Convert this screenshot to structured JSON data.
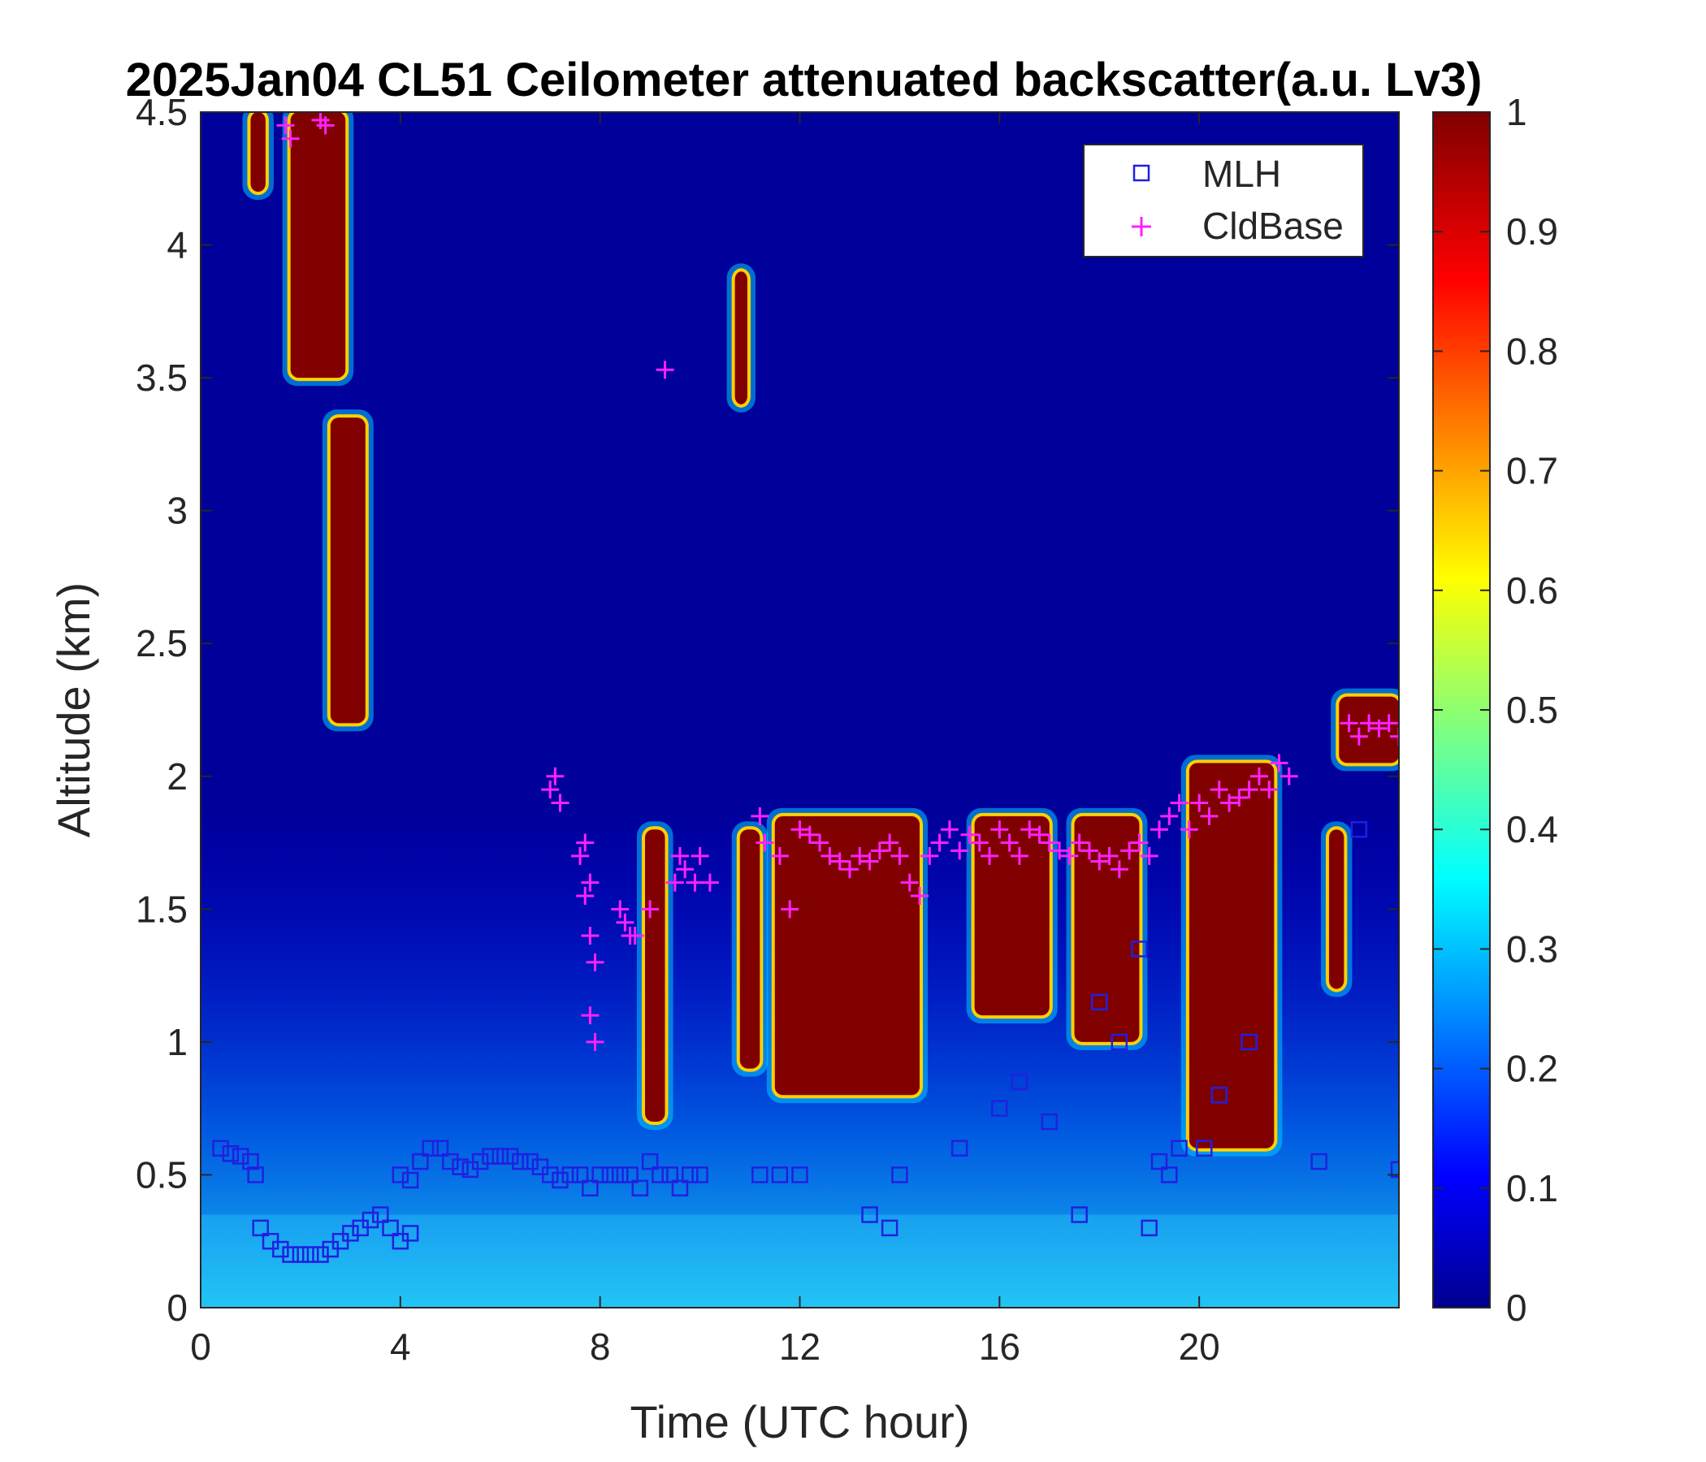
{
  "chart_data": {
    "type": "heatmap",
    "title": "2025Jan04 CL51 Ceilometer attenuated backscatter(a.u. Lv3)",
    "xlabel": "Time (UTC hour)",
    "ylabel": "Altitude (km)",
    "xlim": [
      0,
      24
    ],
    "ylim": [
      0,
      4.5
    ],
    "xticks": [
      0,
      4,
      8,
      12,
      16,
      20
    ],
    "yticks": [
      0,
      0.5,
      1,
      1.5,
      2,
      2.5,
      3,
      3.5,
      4,
      4.5
    ],
    "colorbar": {
      "min": 0,
      "max": 1,
      "ticks": [
        0,
        0.1,
        0.2,
        0.3,
        0.4,
        0.5,
        0.6,
        0.7,
        0.8,
        0.9,
        1
      ],
      "colormap": "jet"
    },
    "legend": {
      "position": "top-right",
      "entries": [
        "MLH",
        "CldBase"
      ]
    },
    "colors": {
      "mlh": "#2020e0",
      "cldbase": "#ff20ff"
    },
    "high_backscatter_regions": [
      {
        "t0": 1.8,
        "t1": 2.9,
        "z0": 3.5,
        "z1": 4.5
      },
      {
        "t0": 2.6,
        "t1": 3.3,
        "z0": 2.2,
        "z1": 3.35
      },
      {
        "t0": 1.0,
        "t1": 1.3,
        "z0": 4.2,
        "z1": 4.5
      },
      {
        "t0": 10.7,
        "t1": 10.95,
        "z0": 3.4,
        "z1": 3.9
      },
      {
        "t0": 8.9,
        "t1": 9.3,
        "z0": 0.7,
        "z1": 1.8
      },
      {
        "t0": 10.8,
        "t1": 11.2,
        "z0": 0.9,
        "z1": 1.8
      },
      {
        "t0": 11.5,
        "t1": 14.4,
        "z0": 0.8,
        "z1": 1.85
      },
      {
        "t0": 15.5,
        "t1": 17.0,
        "z0": 1.1,
        "z1": 1.85
      },
      {
        "t0": 17.5,
        "t1": 18.8,
        "z0": 1.0,
        "z1": 1.85
      },
      {
        "t0": 19.8,
        "t1": 21.5,
        "z0": 0.6,
        "z1": 2.05
      },
      {
        "t0": 22.6,
        "t1": 22.9,
        "z0": 1.2,
        "z1": 1.8
      },
      {
        "t0": 22.8,
        "t1": 24.0,
        "z0": 2.05,
        "z1": 2.3
      }
    ],
    "series": [
      {
        "name": "MLH",
        "marker": "square",
        "x": [
          0.4,
          0.6,
          0.8,
          1.0,
          1.1,
          1.2,
          1.4,
          1.6,
          1.8,
          2.0,
          2.2,
          2.4,
          2.6,
          2.8,
          3.0,
          3.2,
          3.4,
          3.6,
          3.8,
          4.0,
          4.2,
          4.0,
          4.2,
          4.4,
          4.6,
          4.8,
          5.0,
          5.2,
          5.4,
          5.6,
          5.8,
          6.0,
          6.2,
          6.4,
          6.6,
          6.8,
          7.0,
          7.2,
          7.4,
          7.6,
          7.8,
          8.0,
          8.2,
          8.4,
          8.6,
          8.8,
          9.0,
          9.2,
          9.4,
          9.6,
          9.8,
          10.0,
          11.2,
          11.6,
          12.0,
          13.4,
          13.8,
          14.0,
          15.2,
          16.0,
          16.4,
          17.0,
          17.6,
          18.0,
          18.4,
          18.8,
          19.0,
          19.2,
          19.4,
          19.6,
          20.1,
          20.4,
          21.0,
          22.4,
          23.2,
          24.0
        ],
        "y": [
          0.6,
          0.58,
          0.57,
          0.55,
          0.5,
          0.3,
          0.25,
          0.22,
          0.2,
          0.2,
          0.2,
          0.2,
          0.22,
          0.25,
          0.28,
          0.3,
          0.33,
          0.35,
          0.3,
          0.25,
          0.28,
          0.5,
          0.48,
          0.55,
          0.6,
          0.6,
          0.55,
          0.53,
          0.52,
          0.55,
          0.57,
          0.57,
          0.57,
          0.55,
          0.55,
          0.53,
          0.5,
          0.48,
          0.5,
          0.5,
          0.45,
          0.5,
          0.5,
          0.5,
          0.5,
          0.45,
          0.55,
          0.5,
          0.5,
          0.45,
          0.5,
          0.5,
          0.5,
          0.5,
          0.5,
          0.35,
          0.3,
          0.5,
          0.6,
          0.75,
          0.85,
          0.7,
          0.35,
          1.15,
          1.0,
          1.35,
          0.3,
          0.55,
          0.5,
          0.6,
          0.6,
          0.8,
          1.0,
          0.55,
          1.8,
          0.52
        ]
      },
      {
        "name": "CldBase",
        "marker": "plus",
        "x": [
          1.7,
          1.8,
          2.4,
          2.5,
          7.0,
          7.1,
          7.2,
          7.7,
          7.8,
          7.8,
          7.9,
          7.8,
          7.9,
          7.6,
          7.7,
          8.4,
          8.5,
          8.6,
          8.7,
          9.0,
          9.5,
          9.6,
          9.7,
          9.9,
          10.0,
          10.2,
          9.3,
          11.2,
          11.3,
          11.6,
          11.8,
          12.0,
          12.2,
          12.4,
          12.6,
          12.8,
          13.0,
          13.2,
          13.4,
          13.6,
          13.8,
          14.0,
          14.2,
          14.4,
          14.6,
          14.8,
          15.0,
          15.2,
          15.4,
          15.6,
          15.8,
          16.0,
          16.2,
          16.4,
          16.6,
          16.8,
          17.0,
          17.2,
          17.4,
          17.6,
          17.8,
          18.0,
          18.2,
          18.4,
          18.6,
          18.8,
          19.0,
          19.2,
          19.4,
          19.6,
          19.8,
          20.0,
          20.2,
          20.4,
          20.6,
          20.8,
          21.0,
          21.2,
          21.4,
          21.6,
          21.8,
          23.0,
          23.2,
          23.4,
          23.6,
          23.8,
          24.0
        ],
        "y": [
          4.45,
          4.4,
          4.47,
          4.45,
          1.95,
          2.0,
          1.9,
          1.75,
          1.6,
          1.4,
          1.3,
          1.1,
          1.0,
          1.7,
          1.55,
          1.5,
          1.45,
          1.4,
          1.4,
          1.5,
          1.6,
          1.7,
          1.65,
          1.6,
          1.7,
          1.6,
          3.53,
          1.85,
          1.75,
          1.7,
          1.5,
          1.8,
          1.78,
          1.75,
          1.7,
          1.68,
          1.65,
          1.7,
          1.68,
          1.72,
          1.75,
          1.7,
          1.6,
          1.55,
          1.7,
          1.75,
          1.8,
          1.72,
          1.78,
          1.75,
          1.7,
          1.8,
          1.75,
          1.7,
          1.8,
          1.78,
          1.75,
          1.72,
          1.7,
          1.75,
          1.72,
          1.68,
          1.7,
          1.65,
          1.72,
          1.75,
          1.7,
          1.8,
          1.85,
          1.9,
          1.8,
          1.9,
          1.85,
          1.95,
          1.9,
          1.92,
          1.95,
          2.0,
          1.95,
          2.05,
          2.0,
          2.2,
          2.15,
          2.2,
          2.18,
          2.2,
          2.15
        ]
      }
    ]
  }
}
